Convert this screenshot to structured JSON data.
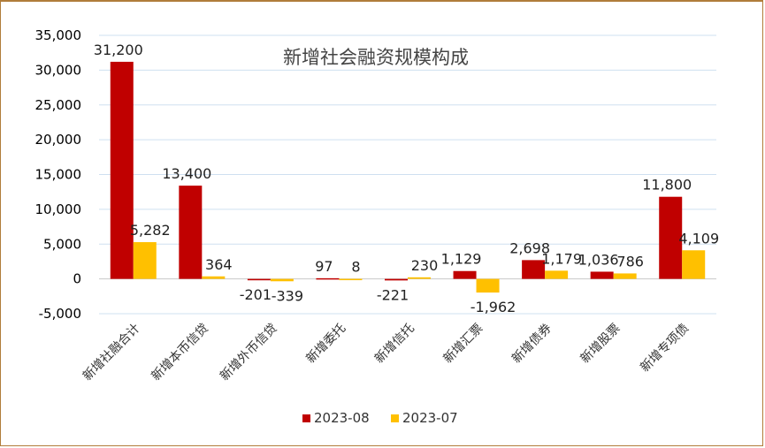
{
  "chart_data": {
    "type": "bar",
    "title": "新增社会融资规模构成",
    "categories": [
      "新增社融合计",
      "新增本币信贷",
      "新增外币信贷",
      "新增委托",
      "新增信托",
      "新增汇票",
      "新增债券",
      "新增股票",
      "新增专项债"
    ],
    "series": [
      {
        "name": "2023-08",
        "color": "#c00000",
        "values": [
          31200,
          13400,
          -201,
          97,
          -221,
          1129,
          2698,
          1036,
          11800
        ],
        "labels": [
          "31,200",
          "13,400",
          "-201",
          "97",
          "-221",
          "1,129",
          "2,698",
          "1,036",
          "11,800"
        ]
      },
      {
        "name": "2023-07",
        "color": "#ffc000",
        "values": [
          5282,
          364,
          -339,
          8,
          230,
          -1962,
          1179,
          786,
          4109
        ],
        "labels": [
          "5,282",
          "364",
          "-339",
          "8",
          "230",
          "-1,962",
          "1,179",
          "786",
          "4,109"
        ]
      }
    ],
    "ylim": [
      -5000,
      35000
    ],
    "yticks": [
      -5000,
      0,
      5000,
      10000,
      15000,
      20000,
      25000,
      30000,
      35000
    ],
    "ytick_labels": [
      "-5,000",
      "0",
      "5,000",
      "10,000",
      "15,000",
      "20,000",
      "25,000",
      "30,000",
      "35,000"
    ],
    "grid": true,
    "legend_position": "bottom"
  }
}
